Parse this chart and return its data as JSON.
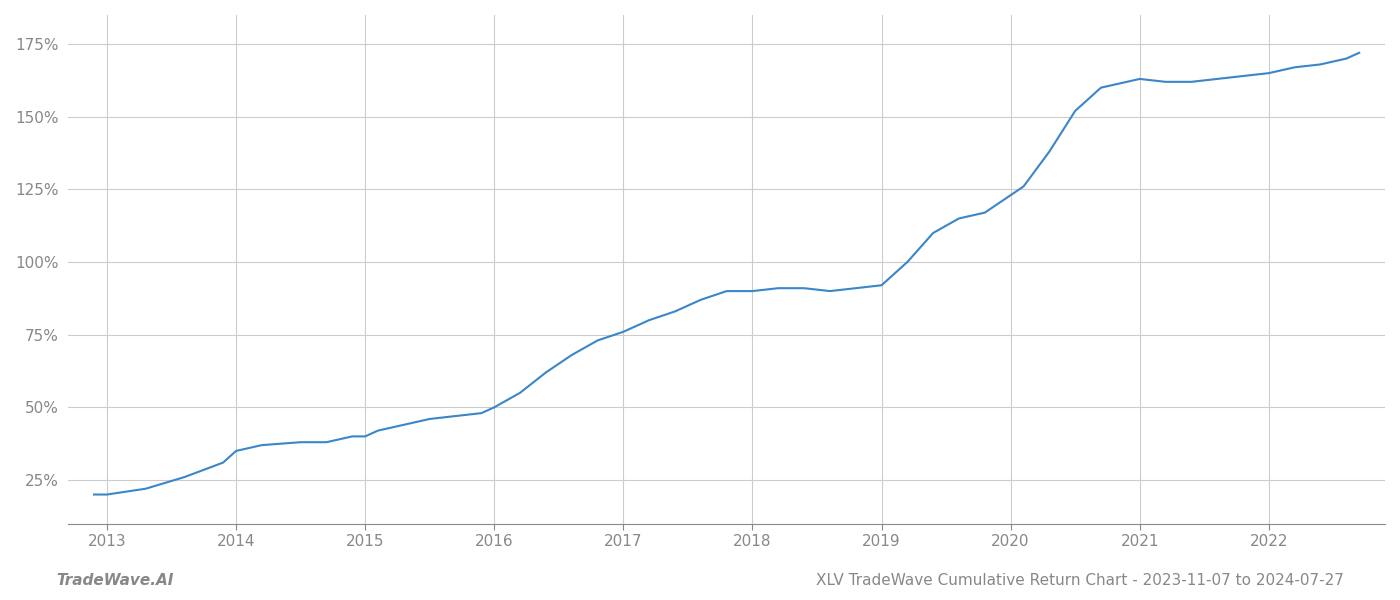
{
  "title": "XLV TradeWave Cumulative Return Chart - 2023-11-07 to 2024-07-27",
  "watermark": "TradeWave.AI",
  "line_color": "#3a86c8",
  "background_color": "#ffffff",
  "grid_color": "#cccccc",
  "x_years": [
    2013,
    2014,
    2015,
    2016,
    2017,
    2018,
    2019,
    2020,
    2021,
    2022
  ],
  "data_points": {
    "x": [
      2012.9,
      2013.0,
      2013.3,
      2013.6,
      2013.9,
      2014.0,
      2014.2,
      2014.5,
      2014.7,
      2014.9,
      2015.0,
      2015.1,
      2015.3,
      2015.5,
      2015.7,
      2015.9,
      2016.0,
      2016.2,
      2016.4,
      2016.6,
      2016.8,
      2017.0,
      2017.2,
      2017.4,
      2017.6,
      2017.8,
      2017.9,
      2018.0,
      2018.2,
      2018.4,
      2018.6,
      2018.8,
      2019.0,
      2019.2,
      2019.4,
      2019.6,
      2019.8,
      2019.9,
      2020.1,
      2020.3,
      2020.5,
      2020.7,
      2020.9,
      2021.0,
      2021.2,
      2021.4,
      2021.6,
      2021.8,
      2022.0,
      2022.2,
      2022.4,
      2022.6,
      2022.7
    ],
    "y": [
      20,
      20,
      22,
      26,
      31,
      35,
      37,
      38,
      38,
      40,
      40,
      42,
      44,
      46,
      47,
      48,
      50,
      55,
      62,
      68,
      73,
      76,
      80,
      83,
      87,
      90,
      90,
      90,
      91,
      91,
      90,
      91,
      92,
      100,
      110,
      115,
      117,
      120,
      126,
      138,
      152,
      160,
      162,
      163,
      162,
      162,
      163,
      164,
      165,
      167,
      168,
      170,
      172
    ]
  },
  "ylim": [
    10,
    185
  ],
  "xlim": [
    2012.7,
    2022.9
  ],
  "yticks": [
    25,
    50,
    75,
    100,
    125,
    150,
    175
  ],
  "ytick_labels": [
    "25%",
    "50%",
    "75%",
    "100%",
    "125%",
    "150%",
    "175%"
  ],
  "title_fontsize": 11,
  "tick_fontsize": 11,
  "watermark_fontsize": 11,
  "line_width": 1.5
}
